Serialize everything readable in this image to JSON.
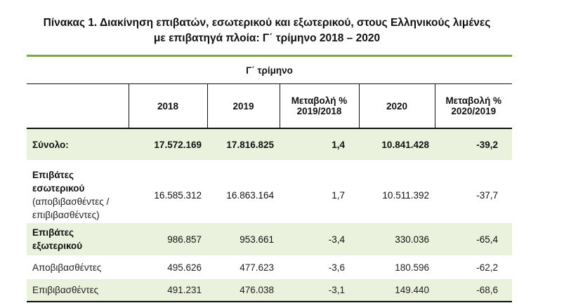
{
  "title": {
    "line1": "Πίνακας 1. Διακίνηση επιβατών, εσωτερικού και εξωτερικού, στους Ελληνικούς λιμένες",
    "line2": "με επιβατηγά πλοία:   Γ΄ τρίμηνο 2018 – 2020"
  },
  "table": {
    "period_header": "Γ΄ τρίμηνο",
    "columns": [
      "",
      "2018",
      "2019",
      "Μεταβολή % 2019/2018",
      "2020",
      "Μεταβολή % 2020/2019"
    ],
    "rows": [
      {
        "label": "Σύνολο:",
        "sublabel": "",
        "values": [
          "17.572.169",
          "17.816.825",
          "1,4",
          "10.841.428",
          "-39,2"
        ]
      },
      {
        "label": "Επιβάτες εσωτερικού",
        "sublabel": "(αποβιβασθέντες / επιβιβασθέντες)",
        "values": [
          "16.585.312",
          "16.863.164",
          "1,7",
          "10.511.392",
          "-37,7"
        ]
      },
      {
        "label": "Επιβάτες εξωτερικού",
        "sublabel": "",
        "values": [
          "986.857",
          "953.661",
          "-3,4",
          "330.036",
          "-65,4"
        ]
      },
      {
        "label": "Αποβιβασθέντες",
        "sublabel": "",
        "values": [
          "495.626",
          "477.623",
          "-3,6",
          "180.596",
          "-62,2"
        ]
      },
      {
        "label": "Επιβιβασθέντες",
        "sublabel": "",
        "values": [
          "491.231",
          "476.038",
          "-3,1",
          "149.440",
          "-68,6"
        ]
      }
    ]
  },
  "colors": {
    "accent_green": "#77a84b",
    "row_shade": "#eaf1dd"
  }
}
